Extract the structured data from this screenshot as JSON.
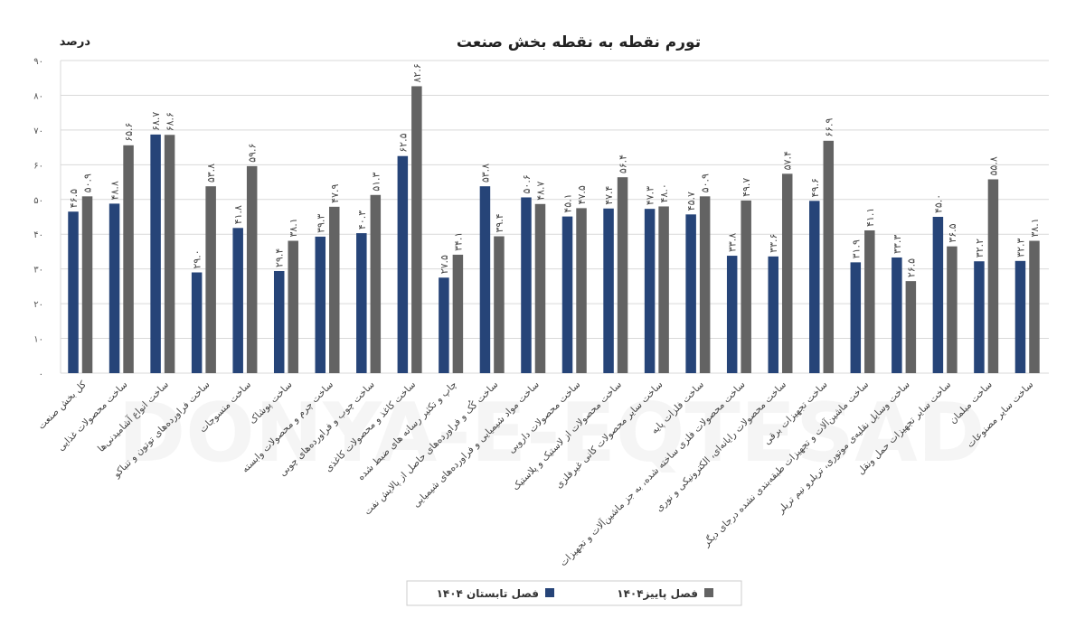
{
  "chart_data": {
    "type": "bar",
    "title": "تورم نقطه به نقطه بخش صنعت",
    "ylabel": "درصد",
    "ylim": [
      0,
      90
    ],
    "yticks": [
      "۰",
      "۱۰",
      "۲۰",
      "۳۰",
      "۴۰",
      "۵۰",
      "۶۰",
      "۷۰",
      "۸۰",
      "۹۰"
    ],
    "grid": true,
    "legend_position": "bottom",
    "watermark": "DONYA-E-EQTESAD",
    "categories": [
      "کل بخش صنعت",
      "ساخت محصولات غذایی",
      "ساخت انواع آشامیدنی‌ها",
      "ساخت فراورده‌های توتون و تنباکو",
      "ساخت منسوجات",
      "ساخت پوشاک",
      "ساخت چرم و محصولات وابسته",
      "ساخت چوب و فراورده‌های چوبی",
      "ساخت کاغذ و محصولات کاغذی",
      "چاپ و تکثیر رسانه های ضبط شده",
      "ساخت کُک و فراورده‌های حاصل از پالایش نفت",
      "ساخت مواد شیمیایی و فراورده‌های شیمیایی",
      "ساخت محصولات دارویی",
      "ساخت محصولات از لاستیک و پلاستیک",
      "ساخت سایر محصولات کانی غیرفلزی",
      "ساخت فلزات پایه",
      "ساخت محصولات فلزی ساخته شده، به جز ماشین‌آلات و تجهیزات",
      "ساخت محصولات رایانه‌ای، الکترونیکی و نوری",
      "ساخت تجهیزات برقی",
      "ساخت ماشین‌آلات و تجهیزات طبقه‌بندی نشده درجای دیگر",
      "ساخت وسایل نقلیه‌ی موتوری، تریلرو نیم تریلر",
      "ساخت سایر تجهیزات حمل ونقل",
      "ساخت مبلمان",
      "ساخت سایر مصنوعات"
    ],
    "series": [
      {
        "name": "فصل تابستان ۱۴۰۴",
        "color": "#264478",
        "values": [
          46.5,
          48.8,
          68.7,
          29.0,
          41.8,
          29.4,
          39.3,
          40.3,
          62.5,
          27.5,
          53.8,
          50.6,
          45.1,
          47.4,
          47.3,
          45.7,
          33.8,
          33.6,
          49.6,
          31.9,
          33.3,
          45.0,
          32.2,
          32.3
        ]
      },
      {
        "name": "فصل پاییز۱۴۰۴",
        "color": "#636363",
        "values": [
          50.9,
          65.6,
          68.6,
          53.8,
          59.6,
          38.1,
          47.9,
          51.3,
          82.6,
          34.1,
          39.4,
          48.7,
          47.5,
          56.4,
          48.0,
          50.9,
          49.7,
          57.4,
          66.9,
          41.1,
          26.5,
          36.5,
          55.8,
          38.1
        ]
      }
    ]
  }
}
